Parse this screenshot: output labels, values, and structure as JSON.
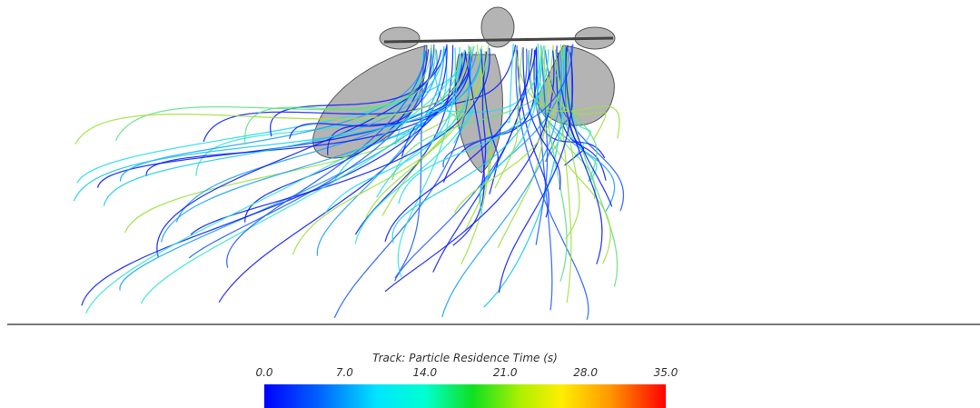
{
  "colorbar": {
    "title": "Track: Particle Residence Time (s)",
    "range": [
      0,
      35
    ],
    "ticks": [
      {
        "value": 0,
        "label": "0.0"
      },
      {
        "value": 7,
        "label": "7.0"
      },
      {
        "value": 14,
        "label": "14.0"
      },
      {
        "value": 21,
        "label": "21.0"
      },
      {
        "value": 28,
        "label": "28.0"
      },
      {
        "value": 35,
        "label": "35.0"
      }
    ]
  }
}
